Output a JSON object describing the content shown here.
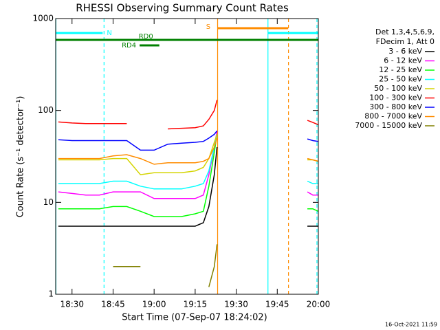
{
  "chart_data": {
    "type": "line",
    "title": "RHESSI Observing Summary Count Rates",
    "xlabel": "Start Time (07-Sep-07 18:24:02)",
    "ylabel": "Count Rate (s⁻¹ detector⁻¹)",
    "timestamp": "16-Oct-2021 11:59",
    "legend_title": [
      "Det 1,3,4,5,6,9,",
      "FDecim 1, Att 0"
    ],
    "log_y": true,
    "xlim": [
      1104.03,
      1200
    ],
    "ylim": [
      1,
      1000
    ],
    "xticks": [
      {
        "value": 1110,
        "label": "18:30"
      },
      {
        "value": 1125,
        "label": "18:45"
      },
      {
        "value": 1140,
        "label": "19:00"
      },
      {
        "value": 1155,
        "label": "19:15"
      },
      {
        "value": 1170,
        "label": "19:30"
      },
      {
        "value": 1185,
        "label": "19:45"
      },
      {
        "value": 1200,
        "label": "20:00"
      }
    ],
    "yticks": [
      1,
      10,
      100,
      1000
    ],
    "x": [
      1105,
      1110,
      1115,
      1120,
      1125,
      1130,
      1135,
      1140,
      1145,
      1150,
      1155,
      1158,
      1160,
      1162,
      1163,
      1180,
      1196,
      1198,
      1200
    ],
    "series": [
      {
        "name": "3 - 6 keV",
        "color": "#000000",
        "values": [
          5.5,
          5.5,
          5.5,
          5.5,
          5.5,
          5.5,
          5.5,
          5.5,
          5.5,
          5.5,
          5.5,
          6,
          9,
          20,
          40,
          null,
          5.5,
          5.5,
          5.5
        ]
      },
      {
        "name": "6 - 12 keV",
        "color": "#ff00ff",
        "values": [
          13,
          12.5,
          12,
          12,
          13,
          13,
          13,
          11,
          11,
          11,
          11,
          12,
          20,
          40,
          60,
          null,
          13,
          12,
          12
        ]
      },
      {
        "name": "12 - 25 keV",
        "color": "#00ff00",
        "values": [
          8.5,
          8.5,
          8.5,
          8.5,
          9,
          9,
          8,
          7,
          7,
          7,
          7.5,
          8,
          15,
          35,
          55,
          null,
          8.5,
          8.5,
          8
        ]
      },
      {
        "name": "25 - 50 keV",
        "color": "#00ffff",
        "values": [
          16,
          16,
          16,
          16,
          17,
          17,
          15,
          14,
          14,
          14,
          15,
          16,
          22,
          40,
          55,
          null,
          17,
          16,
          16
        ]
      },
      {
        "name": "50 - 100 keV",
        "color": "#d4d400",
        "values": [
          29,
          29,
          29,
          29,
          30,
          30,
          20,
          21,
          21,
          21,
          22,
          24,
          30,
          45,
          55,
          null,
          29,
          29,
          28
        ]
      },
      {
        "name": "100 - 300 keV",
        "color": "#ff0000",
        "values": [
          75,
          73,
          72,
          72,
          72,
          72,
          null,
          null,
          63,
          64,
          65,
          68,
          80,
          100,
          130,
          null,
          78,
          74,
          70
        ]
      },
      {
        "name": "300 - 800 keV",
        "color": "#0000ff",
        "values": [
          48,
          47,
          47,
          47,
          47,
          47,
          37,
          37,
          43,
          44,
          45,
          46,
          50,
          55,
          60,
          null,
          49,
          47,
          46
        ]
      },
      {
        "name": "800 - 7000 keV",
        "color": "#ff8c00",
        "values": [
          30,
          30,
          30,
          30,
          32,
          33,
          30,
          26,
          27,
          27,
          27,
          28,
          30,
          40,
          50,
          null,
          30,
          29,
          28
        ]
      },
      {
        "name": "7000 - 15000 keV",
        "color": "#808000",
        "values": [
          null,
          null,
          null,
          null,
          2,
          2,
          2,
          null,
          null,
          null,
          null,
          null,
          1.2,
          2,
          3.5,
          null,
          null,
          null,
          null
        ]
      }
    ],
    "flags": [
      {
        "label": "N",
        "color": "#00ffff",
        "y": 697,
        "intervals": [
          [
            1104.03,
            1121.2
          ],
          [
            1181.6,
            1200
          ]
        ]
      },
      {
        "label": "S",
        "color": "#ff8c00",
        "y": 785,
        "intervals": [
          [
            1163.1,
            1189
          ]
        ]
      },
      {
        "label": "RD0",
        "color": "#008000",
        "y": 586,
        "intervals": [
          [
            1104.03,
            1200
          ]
        ]
      },
      {
        "label": "RD4",
        "color": "#008000",
        "y": 511,
        "intervals": [
          [
            1134.7,
            1141.9
          ]
        ]
      }
    ],
    "event_lines": [
      {
        "x": 1104.1,
        "color": "#00ffff",
        "dashed": false
      },
      {
        "x": 1121.7,
        "color": "#00ffff",
        "dashed": true
      },
      {
        "x": 1163.2,
        "color": "#ff8c00",
        "dashed": false
      },
      {
        "x": 1181.6,
        "color": "#00ffff",
        "dashed": false
      },
      {
        "x": 1189.1,
        "color": "#ff8c00",
        "dashed": true
      },
      {
        "x": 1199.5,
        "color": "#00ffff",
        "dashed": true
      }
    ]
  }
}
